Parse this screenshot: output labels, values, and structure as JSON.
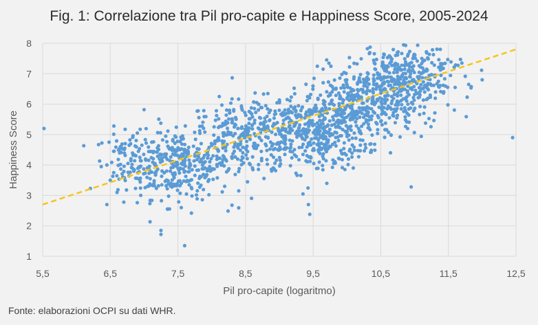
{
  "chart_data": {
    "type": "scatter",
    "title": "Fig. 1: Correlazione tra Pil pro-capite e Happiness Score, 2005-2024",
    "xlabel": "Pil pro-capite (logaritmo)",
    "ylabel": "Happiness Score",
    "xlim": [
      5.5,
      12.5
    ],
    "ylim": [
      1,
      8
    ],
    "xticks": [
      "5,5",
      "6,5",
      "7,5",
      "8,5",
      "9,5",
      "10,5",
      "11,5",
      "12,5"
    ],
    "yticks": [
      "1",
      "2",
      "3",
      "4",
      "5",
      "6",
      "7",
      "8"
    ],
    "grid": true,
    "point_color": "#5b9bd5",
    "trend_color": "#f5c518",
    "trendline": {
      "x": [
        5.5,
        12.5
      ],
      "y": [
        2.7,
        7.8
      ]
    },
    "points": [
      [
        5.52,
        5.2
      ],
      [
        12.45,
        4.9
      ],
      [
        7.6,
        1.35
      ],
      [
        7.25,
        1.85
      ],
      [
        7.25,
        1.72
      ],
      [
        7.35,
        2.55
      ],
      [
        7.7,
        2.42
      ],
      [
        6.45,
        2.7
      ],
      [
        6.7,
        2.78
      ],
      [
        7.55,
        2.6
      ],
      [
        8.3,
        2.68
      ],
      [
        9.45,
        2.38
      ],
      [
        9.43,
        2.7
      ],
      [
        9.35,
        3.05
      ],
      [
        10.95,
        3.28
      ],
      [
        6.6,
        3.1
      ],
      [
        6.45,
        4.0
      ],
      [
        6.55,
        4.45
      ],
      [
        6.65,
        4.6
      ],
      [
        6.5,
        3.5
      ],
      [
        7.0,
        5.82
      ],
      [
        6.9,
        5.05
      ],
      [
        7.8,
        5.78
      ],
      [
        8.8,
        5.95
      ],
      [
        8.4,
        3.15
      ],
      [
        12.0,
        6.8
      ],
      [
        11.7,
        7.35
      ],
      [
        11.6,
        6.55
      ],
      [
        11.3,
        6.9
      ],
      [
        11.15,
        6.4
      ]
    ],
    "clusters": [
      {
        "cx": 7.5,
        "cy": 4.0,
        "sx": 0.4,
        "sy": 0.55,
        "n": 320
      },
      {
        "cx": 8.5,
        "cy": 4.9,
        "sx": 0.45,
        "sy": 0.6,
        "n": 280
      },
      {
        "cx": 9.5,
        "cy": 5.1,
        "sx": 0.4,
        "sy": 0.65,
        "n": 380
      },
      {
        "cx": 10.2,
        "cy": 5.9,
        "sx": 0.4,
        "sy": 0.6,
        "n": 320
      },
      {
        "cx": 10.8,
        "cy": 6.8,
        "sx": 0.35,
        "sy": 0.55,
        "n": 300
      },
      {
        "cx": 11.2,
        "cy": 6.6,
        "sx": 0.3,
        "sy": 0.5,
        "n": 60
      },
      {
        "cx": 6.8,
        "cy": 4.2,
        "sx": 0.25,
        "sy": 0.55,
        "n": 70
      }
    ]
  },
  "source_note": "Fonte: elaborazioni OCPI su dati WHR."
}
